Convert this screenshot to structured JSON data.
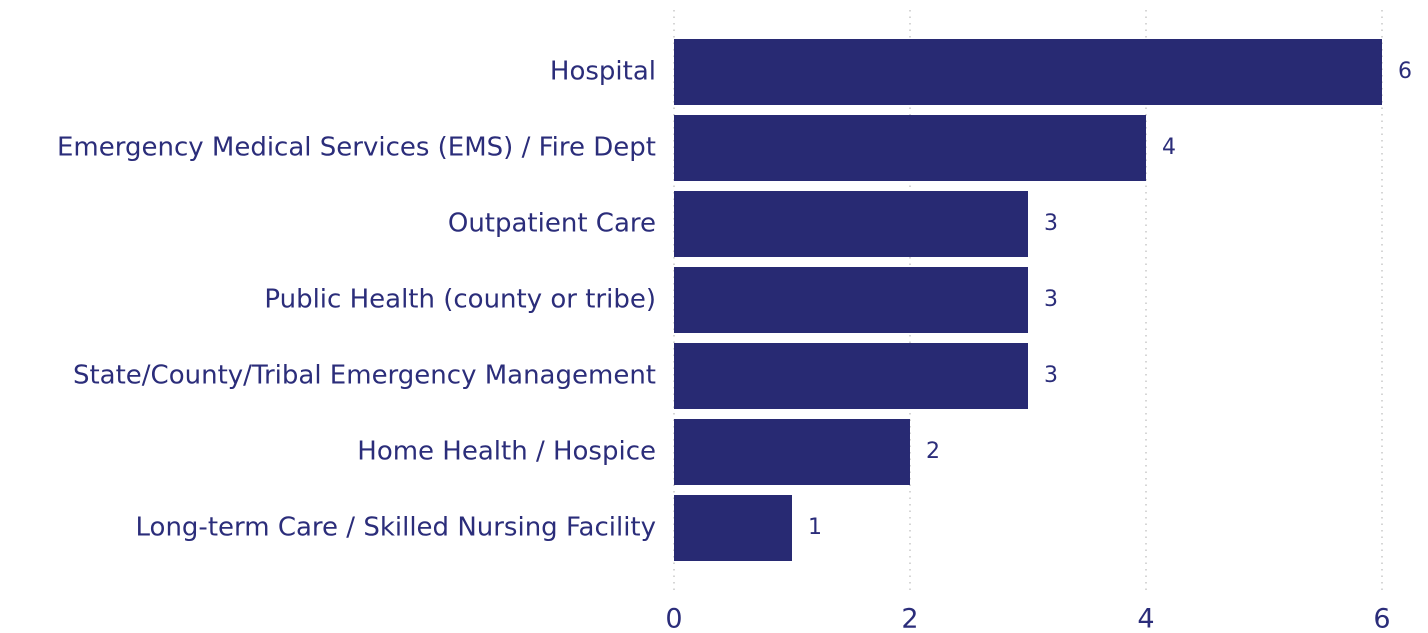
{
  "chart_data": {
    "type": "bar",
    "orientation": "horizontal",
    "categories": [
      "Hospital",
      "Emergency Medical Services (EMS) / Fire Dept",
      "Outpatient Care",
      "Public Health (county or tribe)",
      "State/County/Tribal Emergency Management",
      "Home Health / Hospice",
      "Long-term Care / Skilled Nursing Facility"
    ],
    "values": [
      6,
      4,
      3,
      3,
      3,
      2,
      1
    ],
    "color": "#282a73",
    "xlim": [
      0,
      6
    ],
    "xticks": [
      0,
      2,
      4,
      6
    ],
    "grid": true
  }
}
